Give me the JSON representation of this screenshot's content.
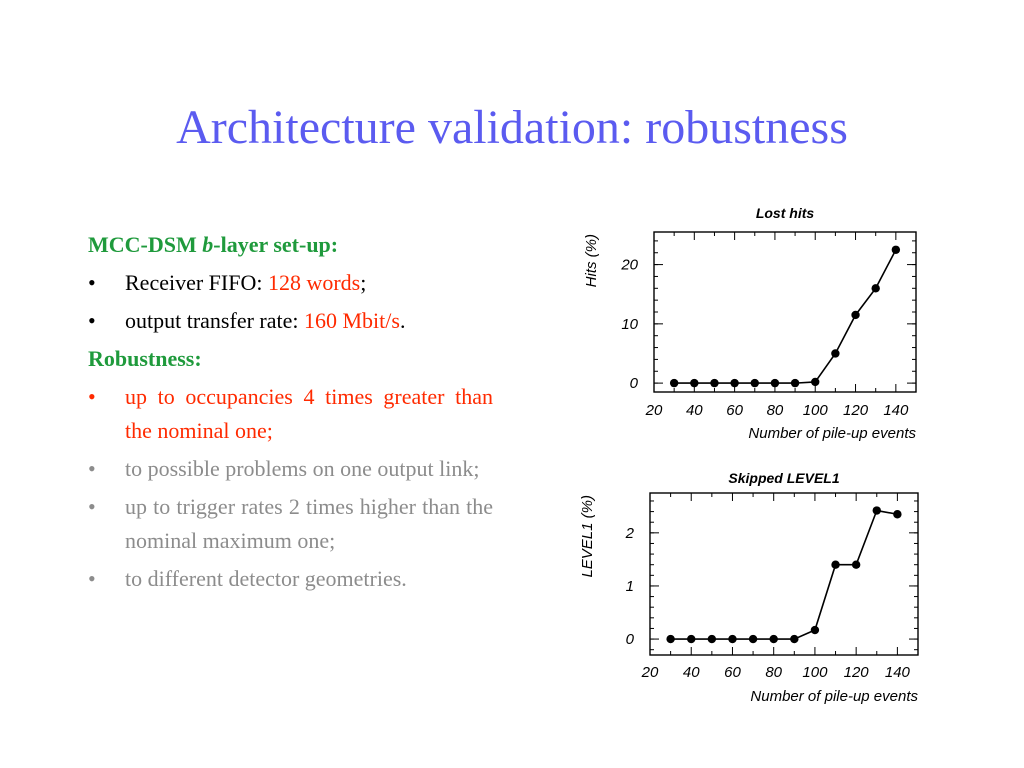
{
  "title": "Architecture validation: robustness",
  "left": {
    "setup_heading_pre": "MCC-DSM ",
    "setup_heading_b": "b",
    "setup_heading_post": "-layer set-up:",
    "bullet": "•",
    "fifo_label": "Receiver FIFO: ",
    "fifo_value": "128 words",
    "fifo_end": ";",
    "rate_label": "output transfer rate: ",
    "rate_value": "160 Mbit/s",
    "rate_end": ".",
    "robust_heading": "Robustness:",
    "robust_items": [
      "up to occupancies 4 times greater than the nominal one;",
      "to possible problems on one output link;",
      "up to trigger rates 2 times higher than the nominal maximum one;",
      "to different detector geometries."
    ]
  },
  "colors": {
    "title": "#5b5bf0",
    "heading": "#1f9a3c",
    "highlight": "#ff2a00",
    "muted": "#8c8c8c"
  },
  "chart_data": [
    {
      "type": "line",
      "title": "Lost hits",
      "xlabel": "Number of pile-up events",
      "ylabel": "Hits (%)",
      "xlim": [
        20,
        150
      ],
      "ylim": [
        -1.5,
        25.5
      ],
      "xticks": [
        20,
        40,
        60,
        80,
        100,
        120,
        140
      ],
      "yticks": [
        0,
        10,
        20
      ],
      "x": [
        30,
        40,
        50,
        60,
        70,
        80,
        90,
        100,
        110,
        120,
        130,
        140
      ],
      "y": [
        0,
        0,
        0,
        0,
        0,
        0,
        0,
        0.2,
        5,
        11.5,
        16,
        22.5
      ]
    },
    {
      "type": "line",
      "title": "Skipped LEVEL1",
      "xlabel": "Number of pile-up events",
      "ylabel": "LEVEL1 (%)",
      "xlim": [
        20,
        150
      ],
      "ylim": [
        -0.3,
        2.75
      ],
      "xticks": [
        20,
        40,
        60,
        80,
        100,
        120,
        140
      ],
      "yticks": [
        0,
        1,
        2
      ],
      "x": [
        30,
        40,
        50,
        60,
        70,
        80,
        90,
        100,
        110,
        120,
        130,
        140
      ],
      "y": [
        0,
        0,
        0,
        0,
        0,
        0,
        0,
        0.17,
        1.4,
        1.4,
        2.42,
        2.35
      ]
    }
  ]
}
